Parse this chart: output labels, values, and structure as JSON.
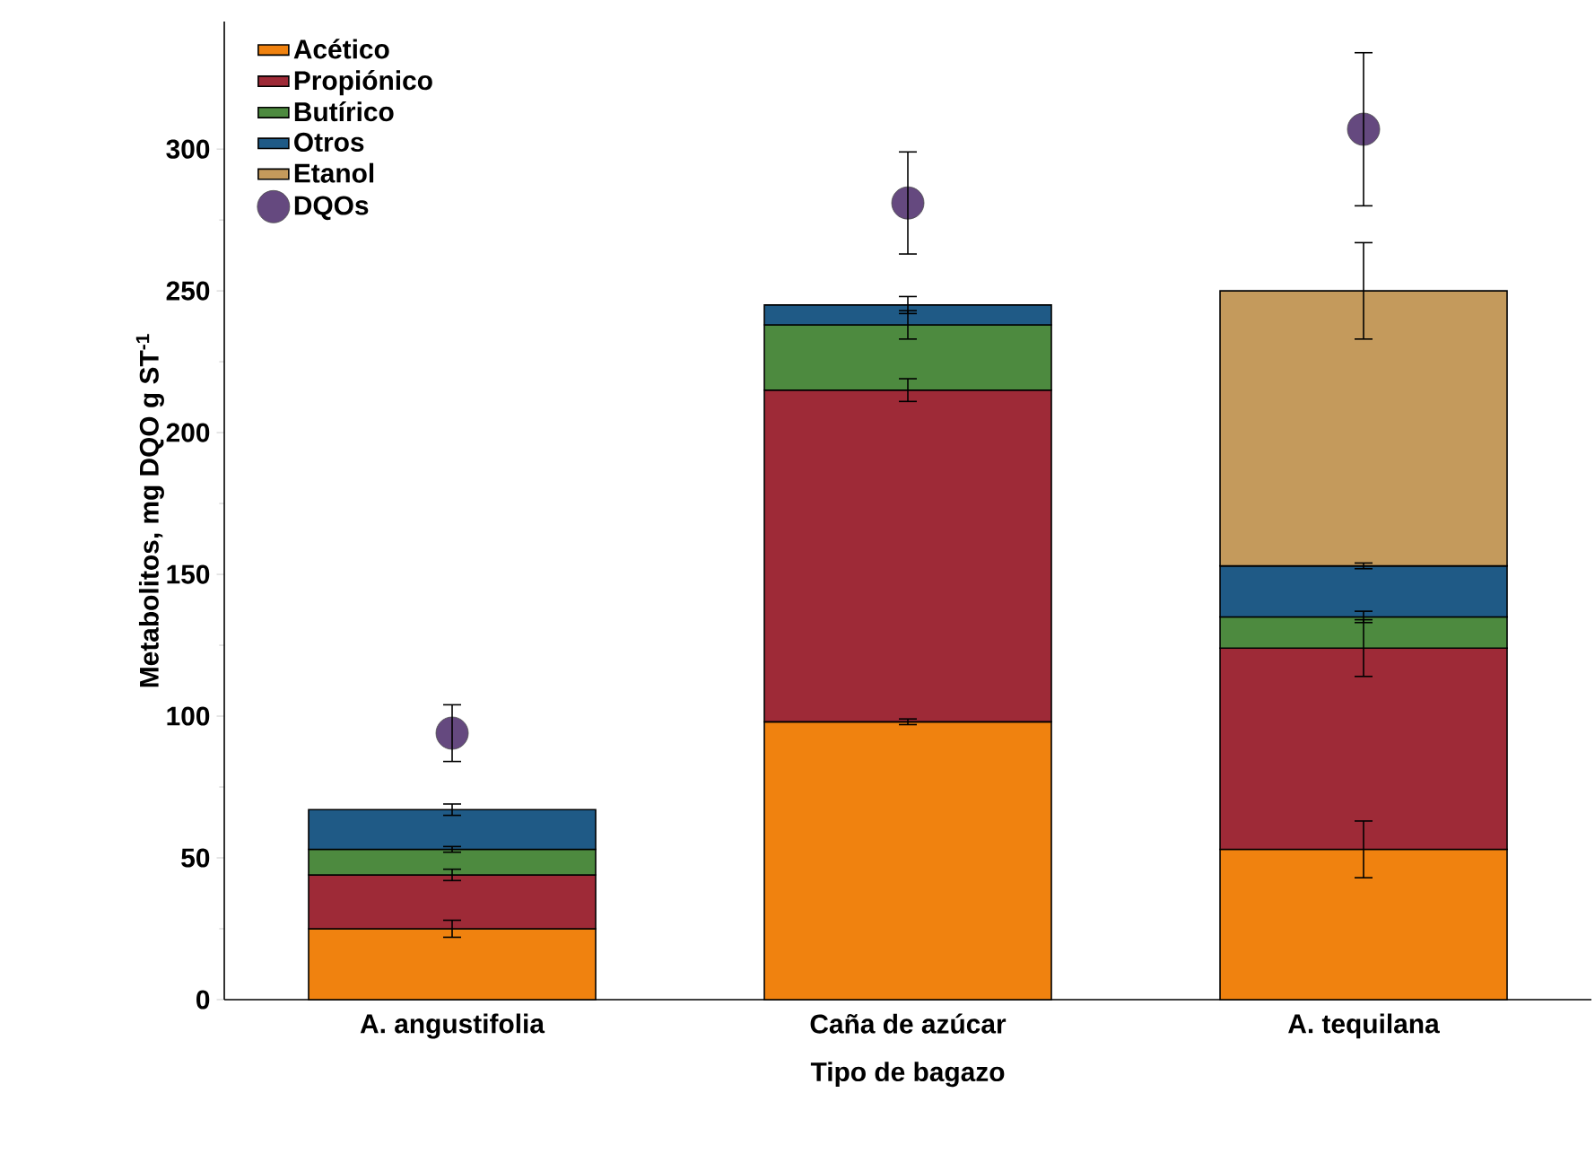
{
  "chart_data": {
    "type": "bar",
    "stacked": true,
    "xlabel": "Tipo de bagazo",
    "ylabel": "Metabolitos, mg DQO g ST$^{-1}$",
    "categories": [
      "A. angustifolia",
      "Caña de azúcar",
      "A. tequilana"
    ],
    "ylim": [
      0,
      345
    ],
    "yticks": [
      0,
      50,
      100,
      150,
      200,
      250,
      300
    ],
    "legend": "top left",
    "grid": false,
    "marker": "circle",
    "series": [
      {
        "name": "Acético",
        "color": "#f0820f",
        "values": [
          25,
          98,
          53
        ],
        "errors": [
          3,
          1,
          10
        ]
      },
      {
        "name": "Propiónico",
        "color": "#9e2a37",
        "values": [
          19,
          117,
          71
        ],
        "errors": [
          2,
          4,
          10
        ]
      },
      {
        "name": "Butírico",
        "color": "#4d8a3f",
        "values": [
          9,
          23,
          11
        ],
        "errors": [
          1,
          5,
          2
        ]
      },
      {
        "name": "Otros",
        "color": "#1f5a86",
        "values": [
          14,
          7,
          18
        ],
        "errors": [
          2,
          3,
          1
        ]
      },
      {
        "name": "Etanol",
        "color": "#c49a5c",
        "values": [
          null,
          null,
          97
        ],
        "errors": [
          null,
          null,
          17
        ]
      },
      {
        "name": "DQOs",
        "type": "scatter",
        "color": "#65497f",
        "x": [
          "A. angustifolia",
          "Caña de azúcar",
          "A. tequilana"
        ],
        "values": [
          94,
          281,
          307
        ],
        "errors": [
          10,
          18,
          27
        ]
      }
    ]
  }
}
